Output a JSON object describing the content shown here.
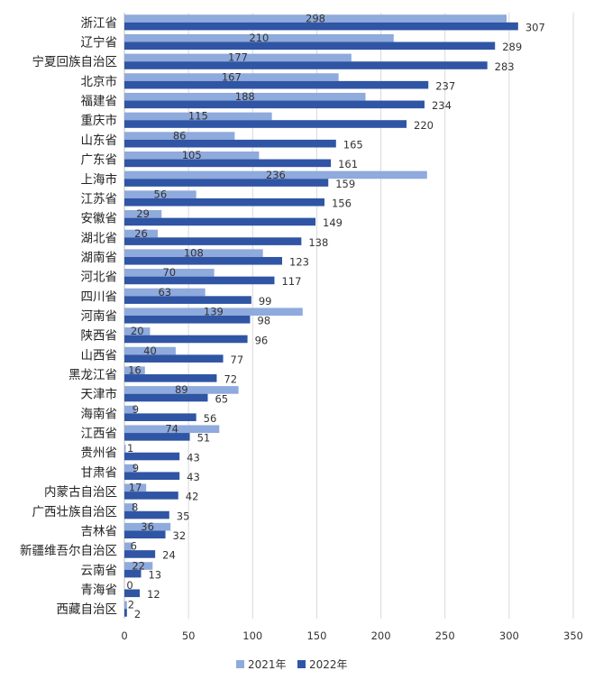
{
  "chart_data": {
    "type": "bar",
    "orientation": "horizontal",
    "categories": [
      "浙江省",
      "辽宁省",
      "宁夏回族自治区",
      "北京市",
      "福建省",
      "重庆市",
      "山东省",
      "广东省",
      "上海市",
      "江苏省",
      "安徽省",
      "湖北省",
      "湖南省",
      "河北省",
      "四川省",
      "河南省",
      "陕西省",
      "山西省",
      "黑龙江省",
      "天津市",
      "海南省",
      "江西省",
      "贵州省",
      "甘肃省",
      "内蒙古自治区",
      "广西壮族自治区",
      "吉林省",
      "新疆维吾尔自治区",
      "云南省",
      "青海省",
      "西藏自治区"
    ],
    "series": [
      {
        "name": "2021年",
        "color": "#8faadc",
        "values": [
          298,
          210,
          177,
          167,
          188,
          115,
          86,
          105,
          236,
          56,
          29,
          26,
          108,
          70,
          63,
          139,
          20,
          40,
          16,
          89,
          9,
          74,
          1,
          9,
          17,
          8,
          36,
          6,
          22,
          0,
          2
        ]
      },
      {
        "name": "2022年",
        "color": "#2f55a4",
        "values": [
          307,
          289,
          283,
          237,
          234,
          220,
          165,
          161,
          159,
          156,
          149,
          138,
          123,
          117,
          99,
          98,
          96,
          77,
          72,
          65,
          56,
          51,
          43,
          43,
          42,
          35,
          32,
          24,
          13,
          12,
          2
        ]
      }
    ],
    "xlim": [
      0,
      350
    ],
    "xticks": [
      "0",
      "50",
      "100",
      "150",
      "200",
      "250",
      "300",
      "350"
    ],
    "grid": "vertical",
    "legend": "bottom"
  }
}
